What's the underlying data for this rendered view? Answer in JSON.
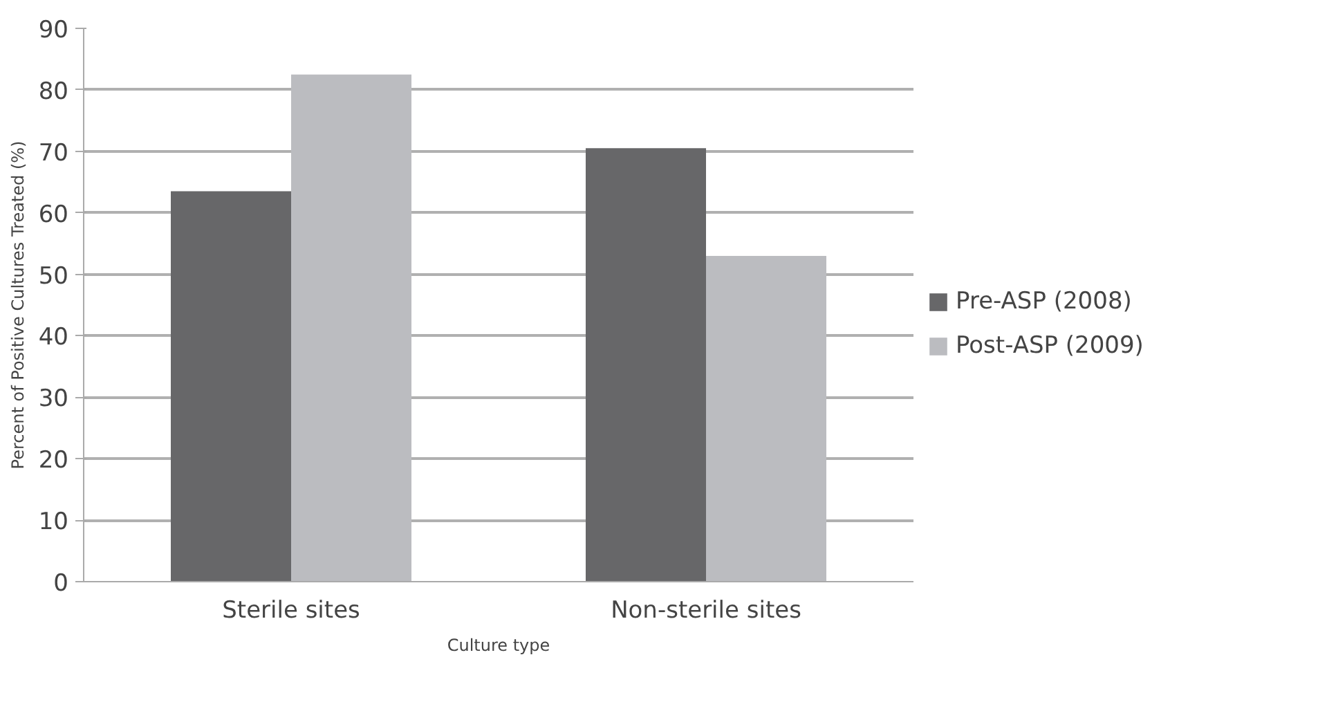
{
  "chart_data": {
    "type": "bar",
    "xlabel": "Culture type",
    "ylabel": "Percent of Positive Cultures Treated (%)",
    "categories": [
      "Sterile sites",
      "Non-sterile sites"
    ],
    "series": [
      {
        "name": "Pre-ASP (2008)",
        "color": "#676769",
        "values": [
          63.5,
          70.5
        ]
      },
      {
        "name": "Post-ASP (2009)",
        "color": "#bbbcc0",
        "values": [
          82.5,
          53
        ]
      }
    ],
    "ylim": [
      0,
      90
    ],
    "yticks": [
      0,
      10,
      20,
      30,
      40,
      50,
      60,
      70,
      80,
      90
    ],
    "grid": "y",
    "legend": "right"
  }
}
